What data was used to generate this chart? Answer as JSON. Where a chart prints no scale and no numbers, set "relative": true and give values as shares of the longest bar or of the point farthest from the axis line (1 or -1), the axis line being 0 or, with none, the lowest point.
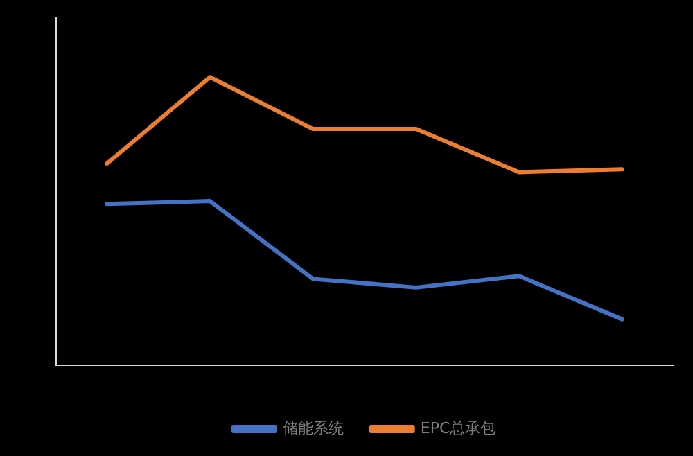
{
  "chart_data": {
    "type": "line",
    "relative": true,
    "categories": [
      null,
      null,
      null,
      null,
      null,
      null
    ],
    "series": [
      {
        "name": "储能系统",
        "color": "#4472c4",
        "values": [
          0.56,
          0.57,
          0.3,
          0.27,
          0.31,
          0.16
        ]
      },
      {
        "name": "EPC总承包",
        "color": "#ed7d31",
        "values": [
          0.7,
          1,
          0.82,
          0.82,
          0.67,
          0.68
        ]
      }
    ],
    "legend": "bottom",
    "grid": false,
    "marker": "none",
    "line_style": "solid"
  }
}
